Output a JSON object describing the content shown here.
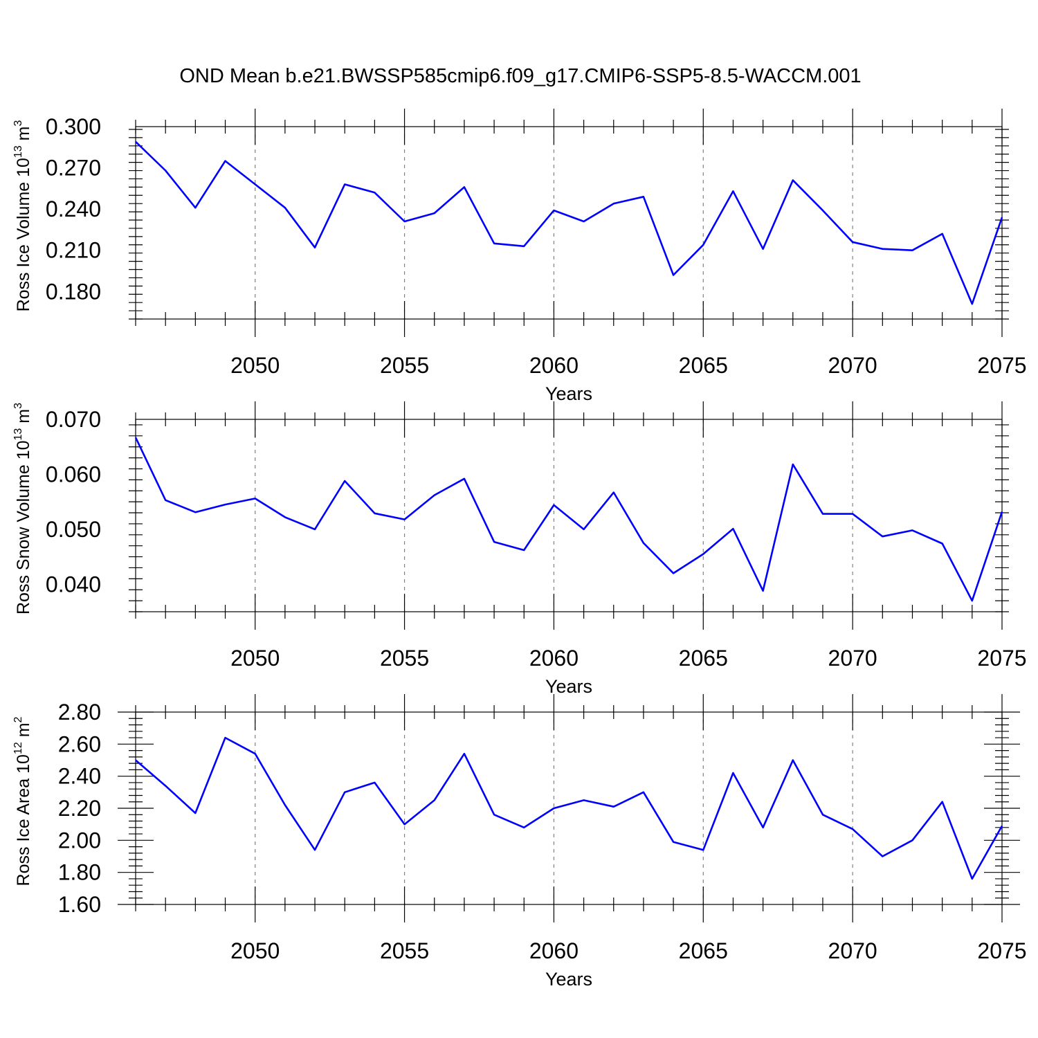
{
  "title": "OND Mean b.e21.BWSSP585cmip6.f09_g17.CMIP6-SSP5-8.5-WACCM.001",
  "colors": {
    "series": "#0000ff",
    "grid": "#808080",
    "axis": "#000000"
  },
  "chart_data": [
    {
      "type": "line",
      "ylabel": "Ross Ice Volume 10",
      "ylabel_exp": "13",
      "ylabel_unit": " m",
      "ylabel_unit_exp": "3",
      "xlabel": "Years",
      "xlim": [
        2046,
        2075
      ],
      "ylim": [
        0.16,
        0.3
      ],
      "yticks": [
        0.18,
        0.21,
        0.24,
        0.27,
        0.3
      ],
      "ytick_labels": [
        "0.180",
        "0.210",
        "0.240",
        "0.270",
        "0.300"
      ],
      "xticks": [
        2050,
        2055,
        2060,
        2065,
        2070,
        2075
      ],
      "xtick_labels": [
        "2050",
        "2055",
        "2060",
        "2065",
        "2070",
        "2075"
      ],
      "grid": "vertical dashed at labeled years",
      "x": [
        2046,
        2047,
        2048,
        2049,
        2050,
        2051,
        2052,
        2053,
        2054,
        2055,
        2056,
        2057,
        2058,
        2059,
        2060,
        2061,
        2062,
        2063,
        2064,
        2065,
        2066,
        2067,
        2068,
        2069,
        2070,
        2071,
        2072,
        2073,
        2074,
        2075
      ],
      "y": [
        0.289,
        0.268,
        0.241,
        0.275,
        0.258,
        0.241,
        0.212,
        0.258,
        0.252,
        0.231,
        0.237,
        0.256,
        0.215,
        0.213,
        0.239,
        0.231,
        0.244,
        0.249,
        0.192,
        0.214,
        0.253,
        0.211,
        0.261,
        0.239,
        0.216,
        0.211,
        0.21,
        0.222,
        0.171,
        0.234
      ]
    },
    {
      "type": "line",
      "ylabel": "Ross Snow Volume 10",
      "ylabel_exp": "13",
      "ylabel_unit": " m",
      "ylabel_unit_exp": "3",
      "xlabel": "Years",
      "xlim": [
        2046,
        2075
      ],
      "ylim": [
        0.035,
        0.07
      ],
      "yticks": [
        0.04,
        0.05,
        0.06,
        0.07
      ],
      "ytick_labels": [
        "0.040",
        "0.050",
        "0.060",
        "0.070"
      ],
      "xticks": [
        2050,
        2055,
        2060,
        2065,
        2070,
        2075
      ],
      "xtick_labels": [
        "2050",
        "2055",
        "2060",
        "2065",
        "2070",
        "2075"
      ],
      "grid": "vertical dashed at labeled years",
      "x": [
        2046,
        2047,
        2048,
        2049,
        2050,
        2051,
        2052,
        2053,
        2054,
        2055,
        2056,
        2057,
        2058,
        2059,
        2060,
        2061,
        2062,
        2063,
        2064,
        2065,
        2066,
        2067,
        2068,
        2069,
        2070,
        2071,
        2072,
        2073,
        2074,
        2075
      ],
      "y": [
        0.0667,
        0.0553,
        0.0531,
        0.0545,
        0.0556,
        0.0522,
        0.05,
        0.0588,
        0.0529,
        0.0518,
        0.0562,
        0.0592,
        0.0477,
        0.0462,
        0.0544,
        0.05,
        0.0567,
        0.0475,
        0.042,
        0.0455,
        0.0501,
        0.0388,
        0.0618,
        0.0528,
        0.0528,
        0.0487,
        0.0498,
        0.0474,
        0.037,
        0.0532
      ]
    },
    {
      "type": "line",
      "ylabel": "Ross Ice Area 10",
      "ylabel_exp": "12",
      "ylabel_unit": " m",
      "ylabel_unit_exp": "2",
      "xlabel": "Years",
      "xlim": [
        2046,
        2075
      ],
      "ylim": [
        1.6,
        2.8
      ],
      "yticks": [
        1.6,
        1.8,
        2.0,
        2.2,
        2.4,
        2.6,
        2.8
      ],
      "ytick_labels": [
        "1.60",
        "1.80",
        "2.00",
        "2.20",
        "2.40",
        "2.60",
        "2.80"
      ],
      "xticks": [
        2050,
        2055,
        2060,
        2065,
        2070,
        2075
      ],
      "xtick_labels": [
        "2050",
        "2055",
        "2060",
        "2065",
        "2070",
        "2075"
      ],
      "grid": "vertical dashed at labeled years",
      "x": [
        2046,
        2047,
        2048,
        2049,
        2050,
        2051,
        2052,
        2053,
        2054,
        2055,
        2056,
        2057,
        2058,
        2059,
        2060,
        2061,
        2062,
        2063,
        2064,
        2065,
        2066,
        2067,
        2068,
        2069,
        2070,
        2071,
        2072,
        2073,
        2074,
        2075
      ],
      "y": [
        2.5,
        2.34,
        2.17,
        2.64,
        2.54,
        2.22,
        1.94,
        2.3,
        2.36,
        2.1,
        2.25,
        2.54,
        2.16,
        2.08,
        2.2,
        2.25,
        2.21,
        2.3,
        1.99,
        1.94,
        2.42,
        2.08,
        2.5,
        2.16,
        2.07,
        1.9,
        2.0,
        2.24,
        1.76,
        2.09
      ]
    }
  ]
}
